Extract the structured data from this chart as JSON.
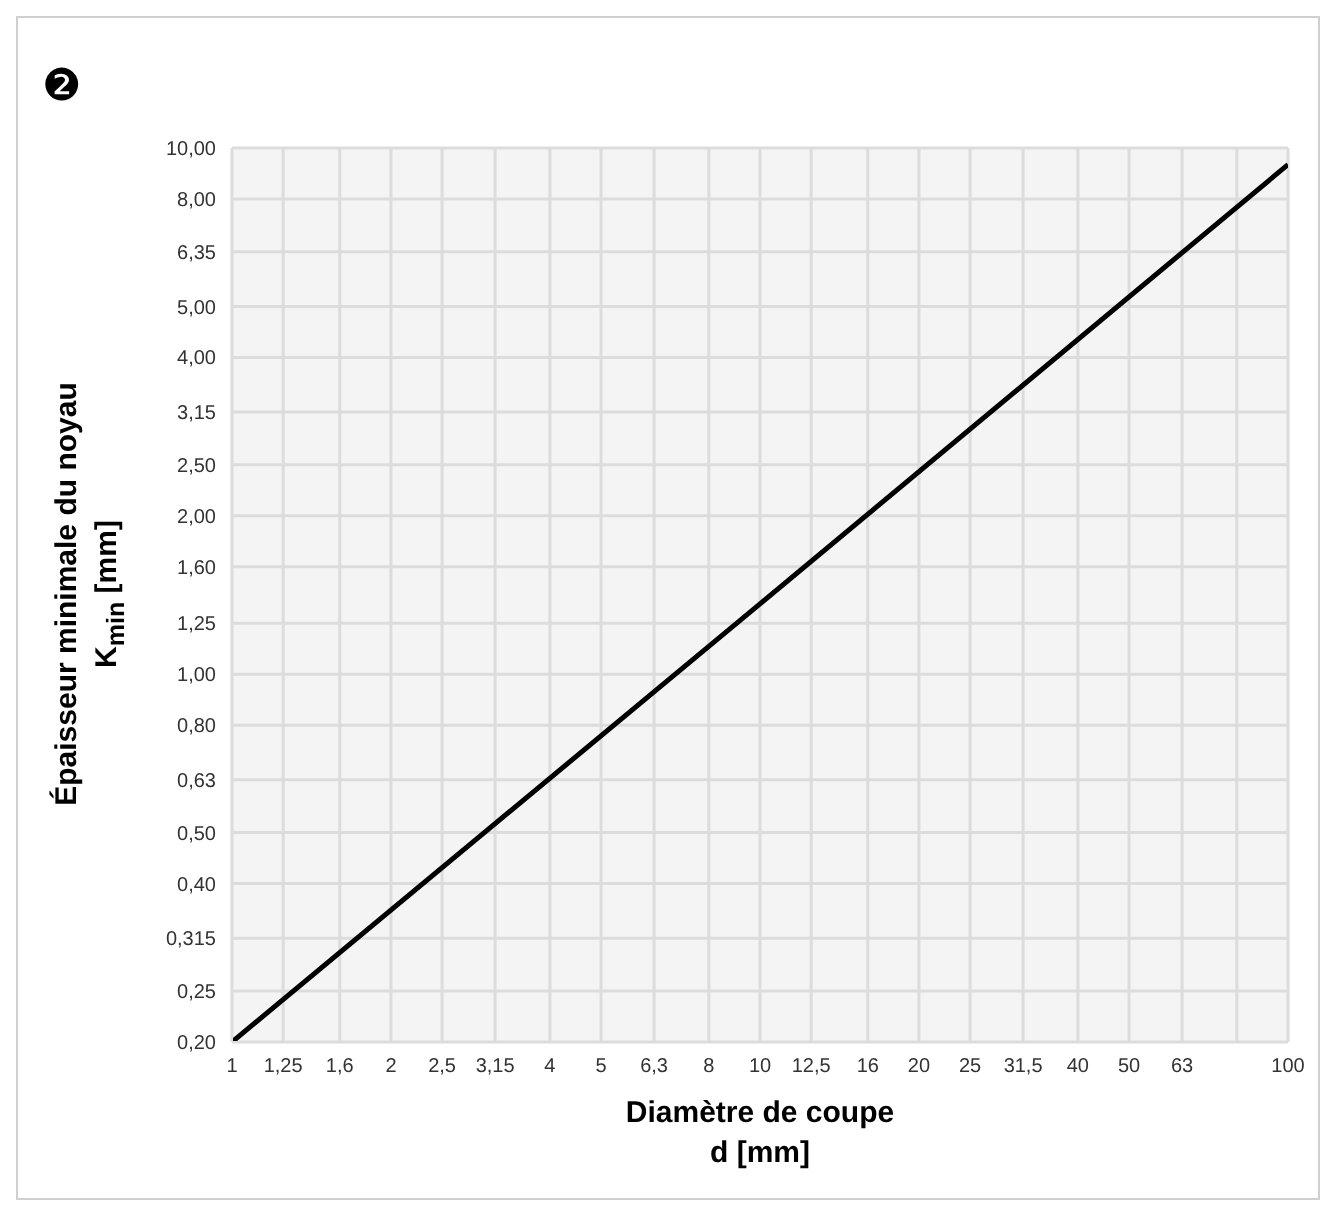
{
  "chart_data": {
    "type": "line",
    "annotations": [
      "❷"
    ],
    "xlabel": "Diamètre de coupe\nd [mm]",
    "ylabel": "Épaisseur minimale du noyau\nK$_{min}$ [mm]",
    "log": "xy",
    "grid": true,
    "marker": "none",
    "line_style": "solid",
    "x": [
      1,
      10,
      100
    ],
    "series": [
      {
        "color": "#000000",
        "values": [
          0.2,
          1.36,
          9.3
        ]
      }
    ],
    "xlim": [
      1,
      100
    ],
    "ylim": [
      0.2,
      10
    ],
    "xticks": [
      1,
      {
        "value": 1.25,
        "label": "1,25"
      },
      {
        "value": 1.6,
        "label": "1,6"
      },
      2,
      {
        "value": 2.5,
        "label": "2,5"
      },
      {
        "value": 3.15,
        "label": "3,15"
      },
      4,
      5,
      {
        "value": 6.3,
        "label": "6,3"
      },
      8,
      10,
      {
        "value": 12.5,
        "label": "12,5"
      },
      16,
      20,
      25,
      {
        "value": 31.5,
        "label": "31,5"
      },
      40,
      50,
      63,
      {
        "value": 80,
        "label": null
      },
      100
    ],
    "yticks": [
      {
        "value": 0.2,
        "label": "0,20"
      },
      {
        "value": 0.25,
        "label": "0,25"
      },
      {
        "value": 0.315,
        "label": "0,315"
      },
      {
        "value": 0.4,
        "label": "0,40"
      },
      {
        "value": 0.5,
        "label": "0,50"
      },
      {
        "value": 0.63,
        "label": "0,63"
      },
      {
        "value": 0.8,
        "label": "0,80"
      },
      {
        "value": 1,
        "label": "1,00"
      },
      {
        "value": 1.25,
        "label": "1,25"
      },
      {
        "value": 1.6,
        "label": "1,60"
      },
      {
        "value": 2,
        "label": "2,00"
      },
      {
        "value": 2.5,
        "label": "2,50"
      },
      {
        "value": 3.15,
        "label": "3,15"
      },
      {
        "value": 4,
        "label": "4,00"
      },
      {
        "value": 5,
        "label": "5,00"
      },
      {
        "value": 6.35,
        "label": "6,35"
      },
      {
        "value": 8,
        "label": "8,00"
      },
      {
        "value": 10,
        "label": "10,00"
      }
    ]
  }
}
